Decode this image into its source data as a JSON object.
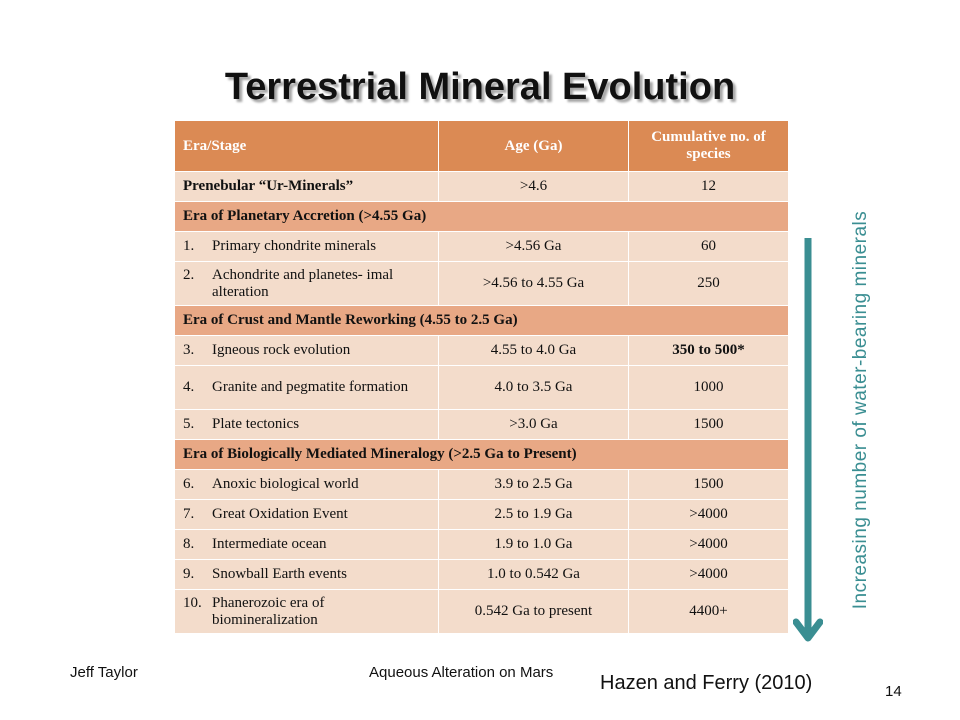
{
  "title": "Terrestrial Mineral Evolution",
  "table": {
    "headers": [
      "Era/Stage",
      "Age (Ga)",
      "Cumulative no. of species"
    ],
    "prebular": {
      "stage": "Prenebular “Ur-Minerals”",
      "age": ">4.6",
      "species": "12"
    },
    "eras": [
      {
        "name": "Era of Planetary Accretion (>4.55 Ga)",
        "rows": [
          {
            "num": "1.",
            "stage": "Primary chondrite minerals",
            "age": ">4.56 Ga",
            "species": "60"
          },
          {
            "num": "2.",
            "stage": "Achondrite and planetes- imal alteration",
            "age": ">4.56 to 4.55 Ga",
            "species": "250"
          }
        ]
      },
      {
        "name": "Era of Crust and Mantle Reworking (4.55 to 2.5 Ga)",
        "rows": [
          {
            "num": "3.",
            "stage": "Igneous rock evolution",
            "age": "4.55 to 4.0 Ga",
            "species": "350 to 500*"
          },
          {
            "num": "4.",
            "stage": "Granite and pegmatite formation",
            "age": "4.0 to 3.5 Ga",
            "species": "1000"
          },
          {
            "num": "5.",
            "stage": "Plate tectonics",
            "age": ">3.0 Ga",
            "species": "1500"
          }
        ]
      },
      {
        "name": "Era of Biologically Mediated Mineralogy (>2.5 Ga to Present)",
        "rows": [
          {
            "num": "6.",
            "stage": "Anoxic biological world",
            "age": "3.9 to 2.5 Ga",
            "species": "1500"
          },
          {
            "num": "7.",
            "stage": "Great Oxidation Event",
            "age": "2.5 to 1.9 Ga",
            "species": ">4000"
          },
          {
            "num": "8.",
            "stage": "Intermediate ocean",
            "age": "1.9 to 1.0 Ga",
            "species": ">4000"
          },
          {
            "num": "9.",
            "stage": "Snowball Earth events",
            "age": "1.0 to 0.542 Ga",
            "species": ">4000"
          },
          {
            "num": "10.",
            "stage": "Phanerozoic era of biomineralization",
            "age": "0.542 Ga to present",
            "species": "4400+"
          }
        ]
      }
    ]
  },
  "side_label": "Increasing number of water-bearing minerals",
  "footer": {
    "author": "Jeff Taylor",
    "course": "Aqueous Alteration on Mars",
    "citation": "Hazen and Ferry (2010)",
    "page": "14"
  },
  "colors": {
    "header": "#db8a54",
    "era_band": "#e8a885",
    "row_fill": "#f3dccb",
    "arrow": "#3a8e92"
  },
  "icons": {
    "arrow": "down-arrow-icon"
  }
}
